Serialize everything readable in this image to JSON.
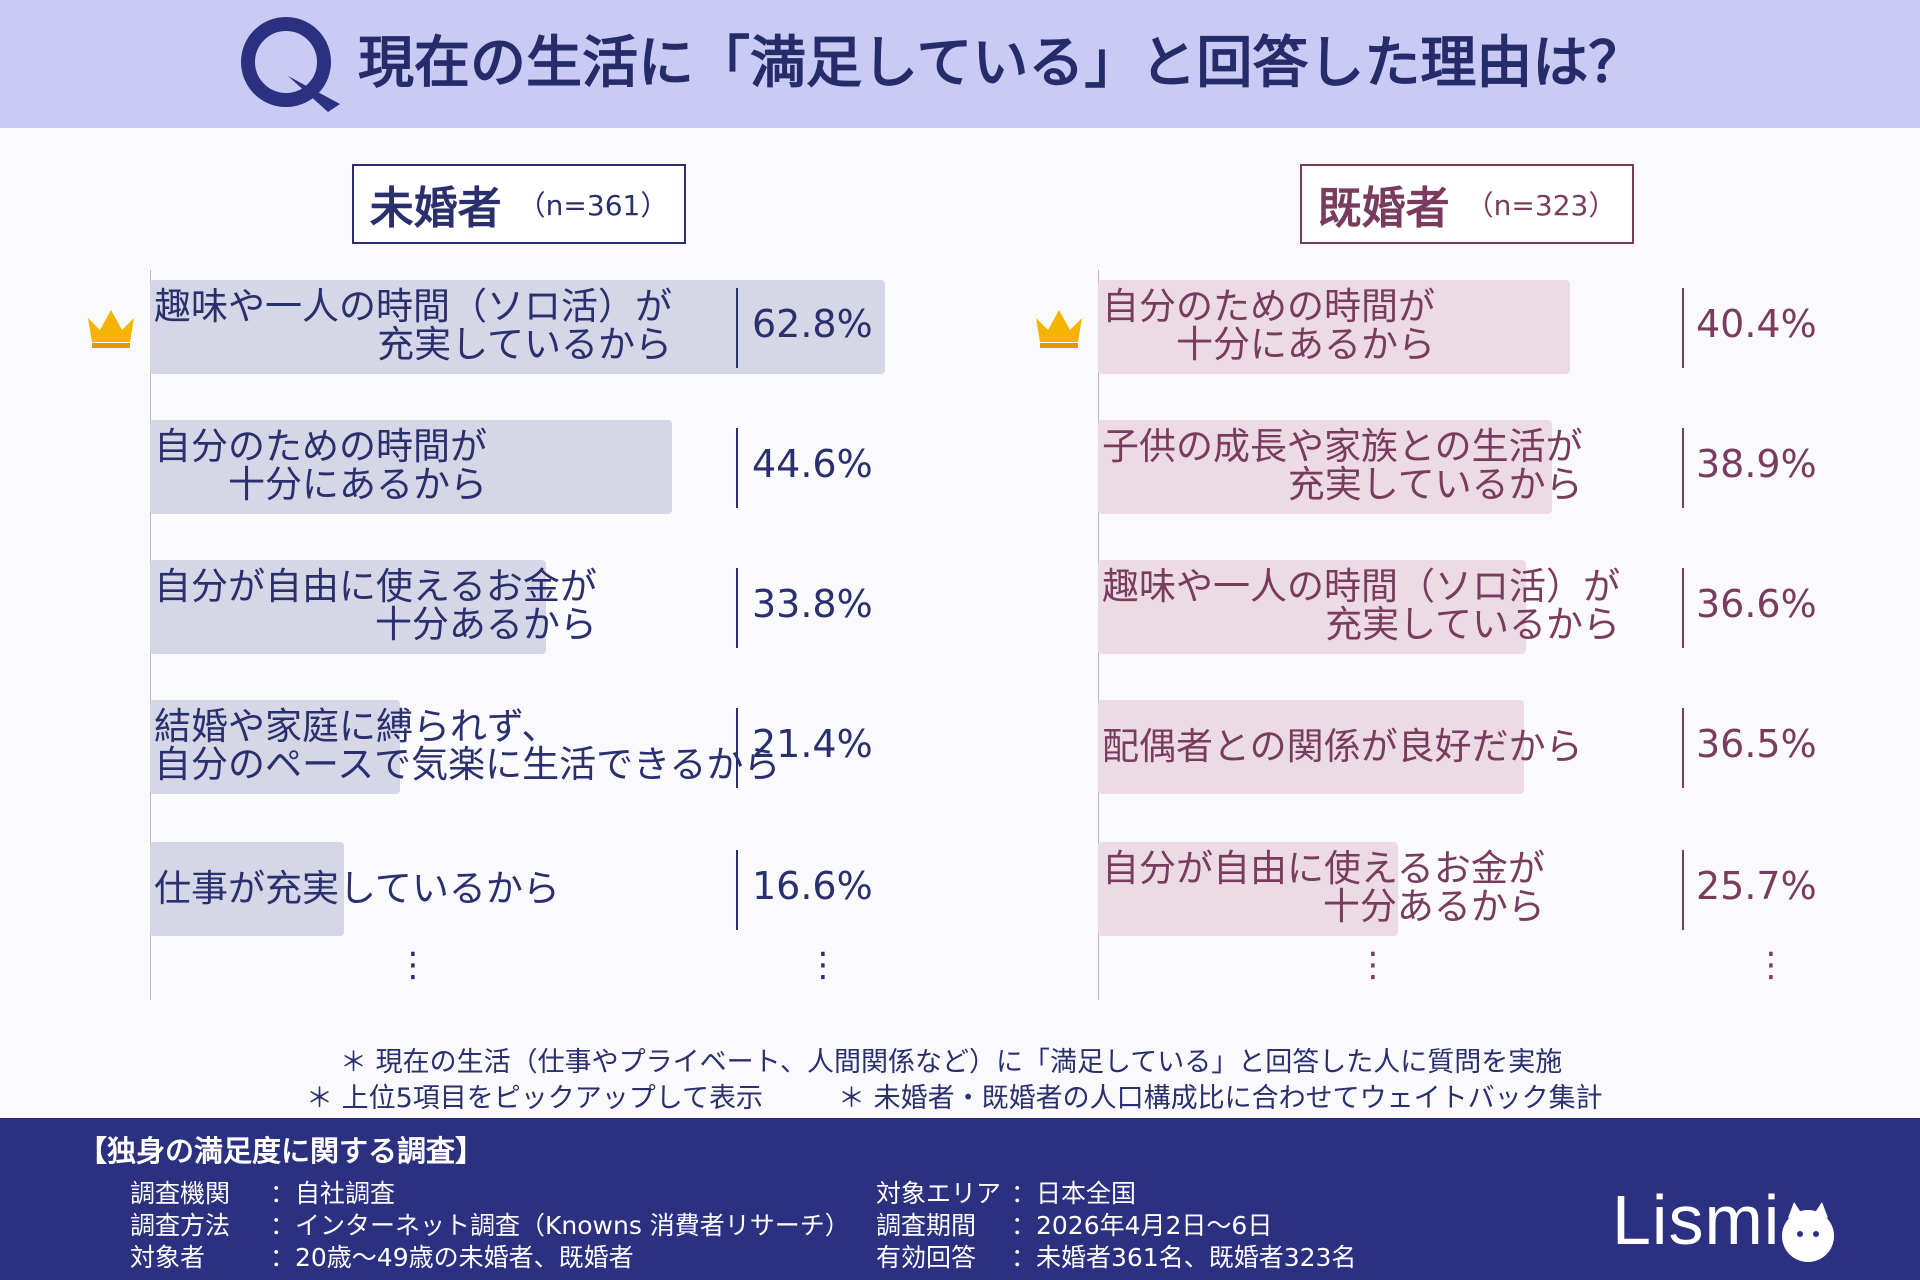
{
  "header": {
    "title": "現在の生活に「満足している」と回答した理由は？",
    "accent": "#c9cbf4"
  },
  "groups": {
    "left": {
      "name": "未婚者",
      "n": "（n=361）"
    },
    "right": {
      "name": "既婚者",
      "n": "（n=323）"
    }
  },
  "chart_data": [
    {
      "type": "bar",
      "orientation": "horizontal",
      "title": "未婚者（n=361）",
      "unit": "%",
      "categories": [
        "趣味や一人の時間（ソロ活）が充実しているから",
        "自分のための時間が十分にあるから",
        "自分が自由に使えるお金が十分あるから",
        "結婚や家庭に縛られず、自分のペースで気楽に生活できるから",
        "仕事が充実しているから"
      ],
      "label_lines": [
        [
          "趣味や一人の時間（ソロ活）が",
          "充実しているから"
        ],
        [
          "自分のための時間が",
          "十分にあるから"
        ],
        [
          "自分が自由に使えるお金が",
          "十分あるから"
        ],
        [
          "結婚や家庭に縛られず、",
          "自分のペースで気楽に生活できるから"
        ],
        [
          "仕事が充実しているから"
        ]
      ],
      "values": [
        62.8,
        44.6,
        33.8,
        21.4,
        16.6
      ],
      "value_labels": [
        "62.8%",
        "44.6%",
        "33.8%",
        "21.4%",
        "16.6%"
      ],
      "color": "#d5d6e6",
      "text_color": "#2a2f6e",
      "top_marker": "crown-icon"
    },
    {
      "type": "bar",
      "orientation": "horizontal",
      "title": "既婚者（n=323）",
      "unit": "%",
      "categories": [
        "自分のための時間が十分にあるから",
        "子供の成長や家族との生活が充実しているから",
        "趣味や一人の時間（ソロ活）が充実しているから",
        "配偶者との関係が良好だから",
        "自分が自由に使えるお金が十分あるから"
      ],
      "label_lines": [
        [
          "自分のための時間が",
          "十分にあるから"
        ],
        [
          "子供の成長や家族との生活が",
          "充実しているから"
        ],
        [
          "趣味や一人の時間（ソロ活）が",
          "充実しているから"
        ],
        [
          "配偶者との関係が良好だから"
        ],
        [
          "自分が自由に使えるお金が",
          "十分あるから"
        ]
      ],
      "values": [
        40.4,
        38.9,
        36.6,
        36.5,
        25.7
      ],
      "value_labels": [
        "40.4%",
        "38.9%",
        "36.6%",
        "36.5%",
        "25.7%"
      ],
      "color": "#ecdbe5",
      "text_color": "#7a3c5e",
      "top_marker": "crown-icon"
    }
  ],
  "notes": {
    "line1": "＊ 現在の生活（仕事やプライベート、人間関係など）に「満足している」と回答した人に質問を実施",
    "line2a": "＊ 上位5項目をピックアップして表示",
    "line2b": "＊ 未婚者・既婚者の人口構成比に合わせてウェイトバック集計"
  },
  "footer": {
    "title": "【独身の満足度に関する調査】",
    "rows_left": [
      {
        "key": "調査機関",
        "value": "：自社調査"
      },
      {
        "key": "調査方法",
        "value": "：インターネット調査（Knowns 消費者リサーチ）"
      },
      {
        "key": "対象者",
        "value": "：20歳～49歳の未婚者、既婚者"
      }
    ],
    "rows_right": [
      {
        "key": "対象エリア",
        "value": "：日本全国"
      },
      {
        "key": "調査期間",
        "value": "：2026年4月2日～6日"
      },
      {
        "key": "有効回答",
        "value": "：未婚者361名、既婚者323名"
      }
    ],
    "logo": "Lismi",
    "background": "#2b3080"
  }
}
